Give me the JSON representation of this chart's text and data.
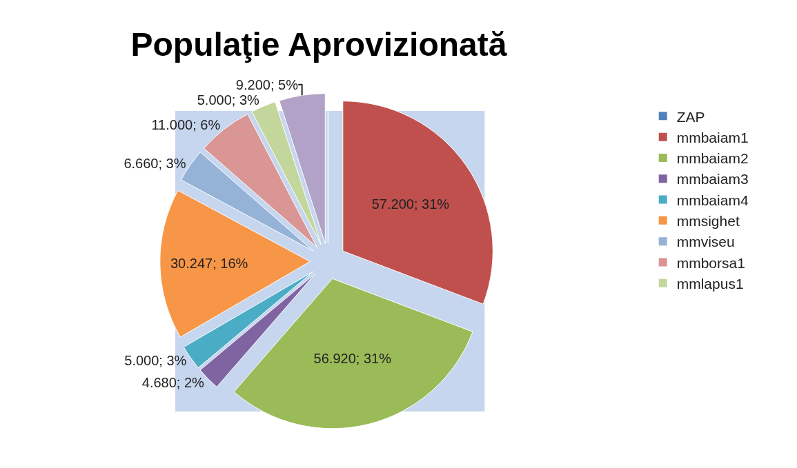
{
  "chart_data": {
    "type": "pie",
    "title": "Populaţie Aprovizionată",
    "categories": [
      "ZAP",
      "mmbaiam1",
      "mmbaiam2",
      "mmbaiam3",
      "mmbaiam4",
      "mmsighet",
      "mmviseu",
      "mmborsa1",
      "mmlapus1",
      null
    ],
    "values": [
      0,
      57200,
      56920,
      4680,
      5000,
      30247,
      6660,
      11000,
      5000,
      9200
    ],
    "value_labels": [
      null,
      "57.200; 31%",
      "56.920; 31%",
      "4.680; 2%",
      "5.000; 3%",
      "30.247; 16%",
      "6.660; 3%",
      "11.000; 6%",
      "5.000; 3%",
      "9.200; 5%"
    ],
    "colors": [
      "#4f81bd",
      "#c0504d",
      "#9bbb59",
      "#8064a2",
      "#4bacc6",
      "#f79646",
      "#95b3d7",
      "#d99694",
      "#c3d69b",
      "#b2a2c7"
    ],
    "legend": "right"
  }
}
